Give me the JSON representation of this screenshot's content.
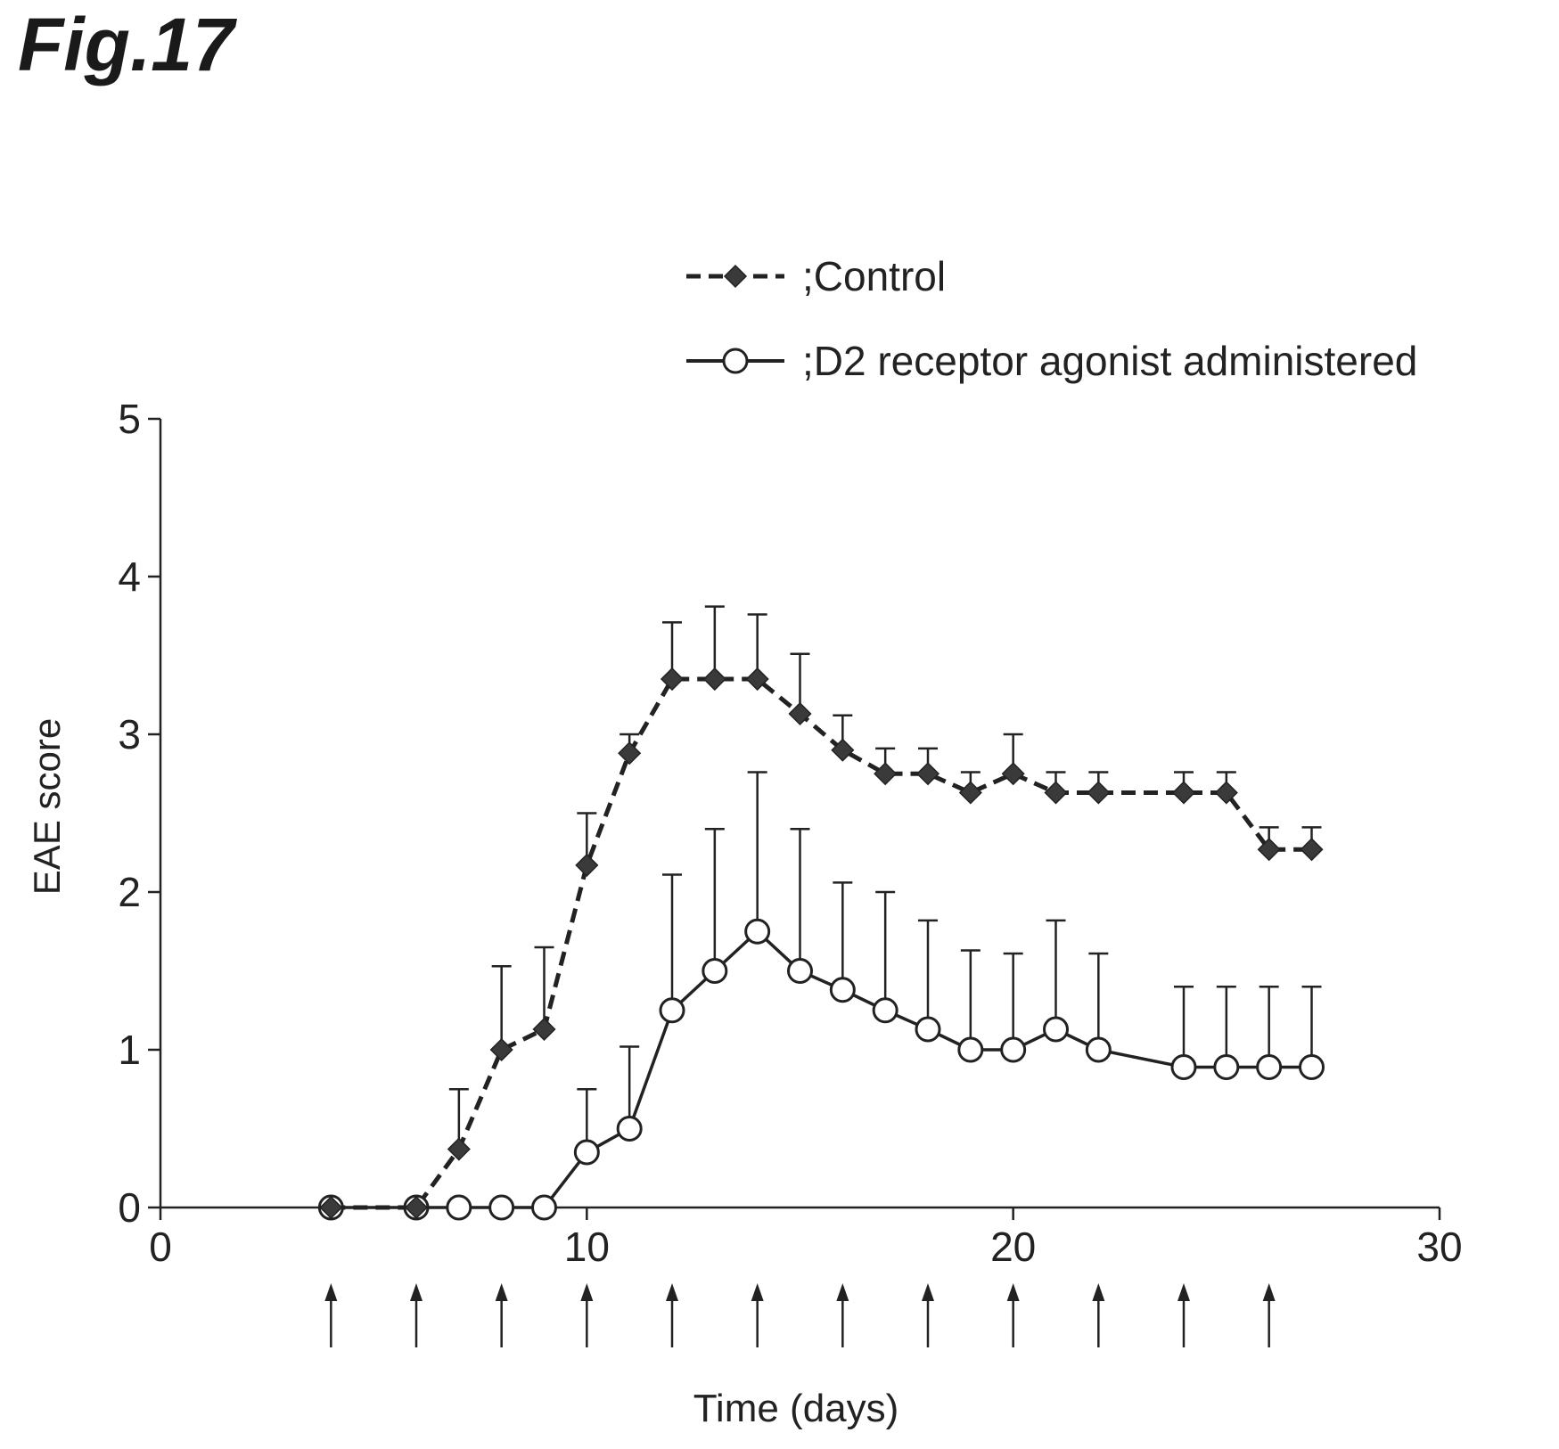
{
  "figure_label": "Fig.17",
  "chart_data": {
    "type": "line",
    "xlabel": "Time (days)",
    "ylabel": "EAE score",
    "xlim": [
      0,
      30
    ],
    "ylim": [
      0,
      5
    ],
    "xticks": [
      0,
      10,
      20,
      30
    ],
    "yticks": [
      0,
      1,
      2,
      3,
      4,
      5
    ],
    "grid": false,
    "legend_position": "top-right",
    "administration_days": [
      4,
      6,
      8,
      10,
      12,
      14,
      16,
      18,
      20,
      22,
      24,
      26
    ],
    "series": [
      {
        "name": ";Control",
        "line_style": "dashed",
        "marker": "filled-diamond",
        "x": [
          4,
          6,
          7,
          8,
          9,
          10,
          11,
          12,
          13,
          14,
          15,
          16,
          17,
          18,
          19,
          20,
          21,
          22,
          24,
          25,
          26,
          27
        ],
        "y": [
          0,
          0,
          0.37,
          1.0,
          1.13,
          2.17,
          2.88,
          3.35,
          3.35,
          3.35,
          3.13,
          2.9,
          2.75,
          2.75,
          2.63,
          2.75,
          2.63,
          2.63,
          2.63,
          2.63,
          2.27,
          2.27
        ],
        "error_upper": [
          0,
          0,
          0.38,
          0.53,
          0.52,
          0.33,
          0.12,
          0.36,
          0.46,
          0.41,
          0.38,
          0.22,
          0.16,
          0.16,
          0.13,
          0.25,
          0.13,
          0.13,
          0.13,
          0.13,
          0.14,
          0.14
        ]
      },
      {
        "name": ";D2 receptor agonist administered",
        "line_style": "solid",
        "marker": "open-circle",
        "x": [
          4,
          6,
          7,
          8,
          9,
          10,
          11,
          12,
          13,
          14,
          15,
          16,
          17,
          18,
          19,
          20,
          21,
          22,
          24,
          25,
          26,
          27
        ],
        "y": [
          0,
          0,
          0,
          0,
          0,
          0.35,
          0.5,
          1.25,
          1.5,
          1.75,
          1.5,
          1.38,
          1.25,
          1.13,
          1.0,
          1.0,
          1.13,
          1.0,
          0.89,
          0.89,
          0.89,
          0.89
        ],
        "error_upper": [
          0,
          0,
          0,
          0,
          0,
          0.4,
          0.52,
          0.86,
          0.9,
          1.01,
          0.9,
          0.68,
          0.75,
          0.69,
          0.63,
          0.61,
          0.69,
          0.61,
          0.51,
          0.51,
          0.51,
          0.51
        ]
      }
    ]
  }
}
